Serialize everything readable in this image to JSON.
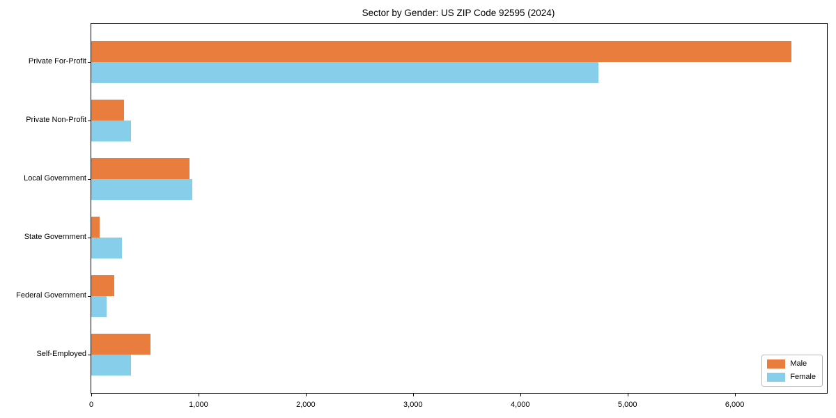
{
  "title": "Sector by Gender: US ZIP Code 92595 (2024)",
  "chart_data": {
    "type": "bar",
    "orientation": "horizontal",
    "title": "Sector by Gender: US ZIP Code 92595 (2024)",
    "categories": [
      "Private For-Profit",
      "Private Non-Profit",
      "Local Government",
      "State Government",
      "Federal Government",
      "Self-Employed"
    ],
    "series": [
      {
        "name": "Male",
        "color": "#e87d3e",
        "values": [
          6530,
          305,
          915,
          78,
          215,
          550
        ]
      },
      {
        "name": "Female",
        "color": "#87ceeb",
        "values": [
          4730,
          370,
          940,
          285,
          143,
          370
        ]
      }
    ],
    "xlabel": "",
    "ylabel": "",
    "xlim": [
      0,
      6860
    ],
    "xticks": [
      0,
      1000,
      2000,
      3000,
      4000,
      5000,
      6000
    ],
    "xtick_labels": [
      "0",
      "1,000",
      "2,000",
      "3,000",
      "4,000",
      "5,000",
      "6,000"
    ],
    "grid": false,
    "legend_position": "lower right",
    "background": "#ffffff"
  },
  "legend": {
    "items": [
      {
        "label": "Male",
        "color": "#e87d3e"
      },
      {
        "label": "Female",
        "color": "#87ceeb"
      }
    ]
  }
}
